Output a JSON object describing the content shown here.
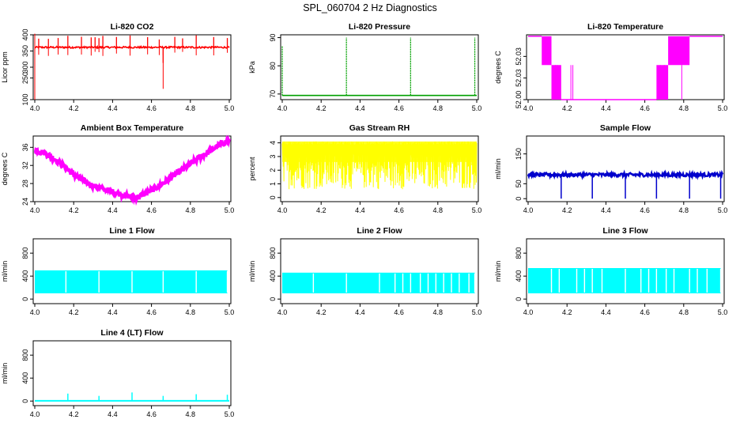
{
  "figure": {
    "title": "SPL_060704  2 Hz Diagnostics"
  },
  "chart_data": [
    {
      "type": "line",
      "title": "Li-820 CO2",
      "xlabel": "",
      "ylabel": "Licor ppm",
      "xlim": [
        4.0,
        5.0
      ],
      "ylim": [
        100,
        400
      ],
      "xticks": [
        "4.0",
        "4.2",
        "4.4",
        "4.6",
        "4.8",
        "5.0"
      ],
      "yticks": [
        "100",
        "250",
        "300",
        "350",
        "400"
      ],
      "color": "#ff0000",
      "grid": false,
      "series": [
        {
          "baseline": 342,
          "noise": 4,
          "spikes_up_to": 398,
          "min": 100,
          "spike_x": [
            4.02,
            4.07,
            4.12,
            4.17,
            4.24,
            4.29,
            4.31,
            4.33,
            4.35,
            4.42,
            4.49,
            4.58,
            4.64,
            4.66,
            4.72,
            4.76,
            4.83,
            4.92,
            4.99
          ]
        }
      ]
    },
    {
      "type": "line",
      "title": "Li-820 Pressure",
      "xlabel": "",
      "ylabel": "kPa",
      "xlim": [
        4.0,
        5.0
      ],
      "ylim": [
        68,
        91
      ],
      "xticks": [
        "4.0",
        "4.2",
        "4.4",
        "4.6",
        "4.8",
        "5.0"
      ],
      "yticks": [
        "70",
        "80",
        "90"
      ],
      "color": "#00a000",
      "grid": false,
      "series": [
        {
          "baseline": 69.5,
          "spikes_up_to": 90,
          "spike_x": [
            4.0,
            4.33,
            4.66,
            4.99
          ]
        }
      ]
    },
    {
      "type": "line",
      "title": "Li-820 Temperature",
      "xlabel": "",
      "ylabel": "degrees C",
      "xlim": [
        4.0,
        5.0
      ],
      "ylim": [
        52.0,
        52.045
      ],
      "xticks": [
        "4.0",
        "4.2",
        "4.4",
        "4.6",
        "4.8",
        "5.0"
      ],
      "yticks": [
        "52.00",
        "52.03",
        "52.03"
      ],
      "color": "#ff00ff",
      "grid": false,
      "series": [
        {
          "levels": [
            {
              "x": [
                4.0,
                4.07
              ],
              "y": 52.044
            },
            {
              "x": [
                4.07,
                4.12
              ],
              "y": [
                52.024,
                52.044
              ]
            },
            {
              "x": [
                4.12,
                4.17
              ],
              "y": [
                52.0,
                52.024
              ]
            },
            {
              "x": [
                4.17,
                4.66
              ],
              "y": 52.0
            },
            {
              "x": [
                4.66,
                4.72
              ],
              "y": [
                52.0,
                52.024
              ]
            },
            {
              "x": [
                4.72,
                4.83
              ],
              "y": [
                52.024,
                52.044
              ]
            },
            {
              "x": [
                4.83,
                5.0
              ],
              "y": 52.044
            }
          ]
        }
      ]
    },
    {
      "type": "line",
      "title": "Ambient Box Temperature",
      "xlabel": "",
      "ylabel": "degrees C",
      "xlim": [
        4.0,
        5.0
      ],
      "ylim": [
        24,
        38.5
      ],
      "xticks": [
        "4.0",
        "4.2",
        "4.4",
        "4.6",
        "4.8",
        "5.0"
      ],
      "yticks": [
        "24",
        "28",
        "32",
        "36"
      ],
      "color": "#ff00ff",
      "grid": false,
      "series": [
        {
          "x": [
            4.0,
            4.05,
            4.1,
            4.15,
            4.2,
            4.25,
            4.3,
            4.35,
            4.4,
            4.45,
            4.5,
            4.52,
            4.55,
            4.6,
            4.65,
            4.7,
            4.75,
            4.8,
            4.85,
            4.9,
            4.95,
            5.0
          ],
          "y": [
            35.5,
            34.8,
            33.5,
            31.8,
            30.0,
            28.6,
            27.5,
            26.8,
            26.2,
            25.6,
            25.0,
            24.9,
            25.4,
            26.5,
            27.8,
            29.3,
            30.8,
            32.3,
            33.8,
            35.2,
            36.5,
            37.6
          ]
        }
      ]
    },
    {
      "type": "line",
      "title": "Gas Stream RH",
      "xlabel": "",
      "ylabel": "percent",
      "xlim": [
        4.0,
        5.0
      ],
      "ylim": [
        -0.3,
        4.5
      ],
      "xticks": [
        "4.0",
        "4.2",
        "4.4",
        "4.6",
        "4.8",
        "5.0"
      ],
      "yticks": [
        "0",
        "1",
        "2",
        "3",
        "4"
      ],
      "color": "#ffff00",
      "grid": false,
      "series": [
        {
          "upper": 4.1,
          "lower_min": 0.0
        }
      ]
    },
    {
      "type": "line",
      "title": "Sample Flow",
      "xlabel": "",
      "ylabel": "ml/min",
      "xlim": [
        4.0,
        5.0
      ],
      "ylim": [
        -10,
        210
      ],
      "xticks": [
        "4.0",
        "4.2",
        "4.4",
        "4.6",
        "4.8",
        "5.0"
      ],
      "yticks": [
        "0",
        "50",
        "150"
      ],
      "color": "#0000cc",
      "grid": false,
      "series": [
        {
          "baseline": 80,
          "noise": 6,
          "dips_to": 0,
          "dip_x": [
            4.17,
            4.33,
            4.5,
            4.66,
            4.83,
            4.99
          ]
        }
      ]
    },
    {
      "type": "area",
      "title": "Line 1 Flow",
      "xlabel": "",
      "ylabel": "ml/min",
      "xlim": [
        4.0,
        5.0
      ],
      "ylim": [
        -80,
        1050
      ],
      "xticks": [
        "4.0",
        "4.2",
        "4.4",
        "4.6",
        "4.8",
        "5.0"
      ],
      "yticks": [
        "0",
        "400",
        "800"
      ],
      "color": "#00ffff",
      "grid": false,
      "series": [
        {
          "band_low": 100,
          "band_high": 500,
          "gap_x": [
            4.16,
            4.33,
            4.5,
            4.66,
            4.83,
            4.99
          ]
        }
      ]
    },
    {
      "type": "area",
      "title": "Line 2 Flow",
      "xlabel": "",
      "ylabel": "ml/min",
      "xlim": [
        4.0,
        5.0
      ],
      "ylim": [
        -80,
        1050
      ],
      "xticks": [
        "4.0",
        "4.2",
        "4.4",
        "4.6",
        "4.8",
        "5.0"
      ],
      "yticks": [
        "0",
        "400",
        "800"
      ],
      "color": "#00ffff",
      "grid": false,
      "series": [
        {
          "band_low": 100,
          "band_high": 460,
          "gap_x": [
            4.16,
            4.33,
            4.5,
            4.58,
            4.62,
            4.66,
            4.71,
            4.75,
            4.79,
            4.83,
            4.87,
            4.91,
            4.96,
            4.99
          ]
        }
      ]
    },
    {
      "type": "area",
      "title": "Line 3 Flow",
      "xlabel": "",
      "ylabel": "ml/min",
      "xlim": [
        4.0,
        5.0
      ],
      "ylim": [
        -80,
        1050
      ],
      "xticks": [
        "4.0",
        "4.2",
        "4.4",
        "4.6",
        "4.8",
        "5.0"
      ],
      "yticks": [
        "0",
        "400",
        "800"
      ],
      "color": "#00ffff",
      "grid": false,
      "series": [
        {
          "band_low": 100,
          "band_high": 540,
          "gap_x": [
            4.12,
            4.16,
            4.25,
            4.29,
            4.33,
            4.38,
            4.5,
            4.58,
            4.62,
            4.66,
            4.71,
            4.75,
            4.83,
            4.87,
            4.92,
            4.99
          ]
        }
      ]
    },
    {
      "type": "line",
      "title": "Line 4 (LT) Flow",
      "xlabel": "",
      "ylabel": "ml/min",
      "xlim": [
        4.0,
        5.0
      ],
      "ylim": [
        -80,
        1050
      ],
      "xticks": [
        "4.0",
        "4.2",
        "4.4",
        "4.6",
        "4.8",
        "5.0"
      ],
      "yticks": [
        "0",
        "400",
        "800"
      ],
      "color": "#00ffff",
      "grid": false,
      "series": [
        {
          "baseline": 5,
          "spike_heights": [
            130,
            90,
            150,
            90,
            120,
            110
          ],
          "spike_x": [
            4.17,
            4.33,
            4.5,
            4.66,
            4.83,
            4.99
          ]
        }
      ]
    }
  ]
}
